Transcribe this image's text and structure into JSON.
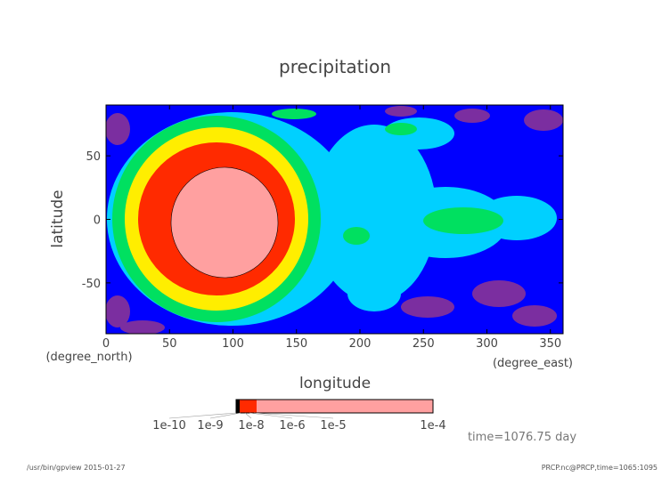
{
  "chart_data": {
    "type": "heatmap",
    "subtype": "filled-contour map",
    "title": "precipitation",
    "xlabel": "longitude",
    "ylabel": "latitude",
    "x_unit": "(degree_east)",
    "y_unit": "(degree_north)",
    "xlim": [
      0,
      360
    ],
    "ylim": [
      -90,
      90
    ],
    "xticks": [
      0,
      50,
      100,
      150,
      200,
      250,
      300,
      350
    ],
    "yticks": [
      -50,
      0,
      50
    ],
    "colorbar": {
      "labels_left": [
        "1e-10",
        "1e-9",
        "1e-8",
        "1e-6",
        "1e-5"
      ],
      "label_right": "1e-4",
      "colors": [
        "#000000",
        "#7b2ea0",
        "#0000ff",
        "#00d0ff",
        "#00e060",
        "#ffee00",
        "#ff2a00",
        "#ffa0a0"
      ]
    },
    "features": [
      {
        "name": "maximum precipitation disk",
        "center_lon": 90,
        "center_lat": 0,
        "level": "highest"
      }
    ]
  },
  "annotations": {
    "time": "time=1076.75 day",
    "footer_left": "/usr/bin/gpview  2015-01-27",
    "footer_right": "PRCP.nc@PRCP,time=1065:1095"
  }
}
